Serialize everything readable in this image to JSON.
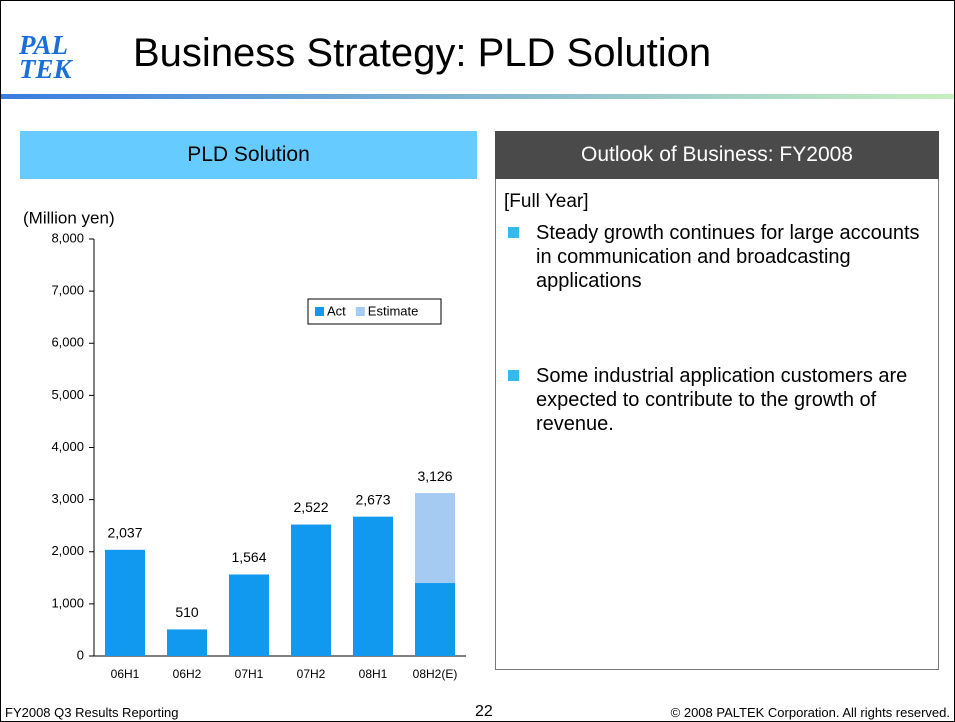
{
  "logo": {
    "line1": "PAL",
    "line2": "TEK"
  },
  "header": {
    "title": "Business Strategy: PLD Solution"
  },
  "left_panel": {
    "title": "PLD Solution"
  },
  "chart_data": {
    "type": "bar",
    "stacked": true,
    "y_label": "(Million yen)",
    "categories": [
      "06H1",
      "06H2",
      "07H1",
      "07H2",
      "08H1",
      "08H2(E)"
    ],
    "series": [
      {
        "name": "Act",
        "color": "#1199f0",
        "values": [
          2037,
          510,
          1564,
          2522,
          2673,
          1400
        ]
      },
      {
        "name": "Estimate",
        "color": "#a6cbf2",
        "values": [
          null,
          null,
          null,
          null,
          null,
          1726
        ]
      }
    ],
    "totals": [
      2037,
      510,
      1564,
      2522,
      2673,
      3126
    ],
    "total_labels": [
      "2,037",
      "510",
      "1,564",
      "2,522",
      "2,673",
      "3,126"
    ],
    "ylim": [
      0,
      8000
    ],
    "yticks": [
      0,
      {
        "value": 1000,
        "label": "1,000"
      },
      {
        "value": 2000,
        "label": "2,000"
      },
      {
        "value": 3000,
        "label": "3,000"
      },
      {
        "value": 4000,
        "label": "4,000"
      },
      {
        "value": 5000,
        "label": "5,000"
      },
      {
        "value": 6000,
        "label": "6,000"
      },
      {
        "value": 7000,
        "label": "7,000"
      },
      {
        "value": 8000,
        "label": "8,000"
      }
    ],
    "legend": "upper right"
  },
  "right_panel": {
    "title": "Outlook of Business: FY2008",
    "subtitle": "[Full Year]",
    "bullets": [
      "Steady growth continues for large accounts in communication and broadcasting applications",
      "Some industrial application customers are expected to contribute to the growth of revenue."
    ]
  },
  "footer": {
    "left": "FY2008 Q3 Results Reporting",
    "page": "22",
    "right": "© 2008 PALTEK Corporation. All rights reserved."
  }
}
